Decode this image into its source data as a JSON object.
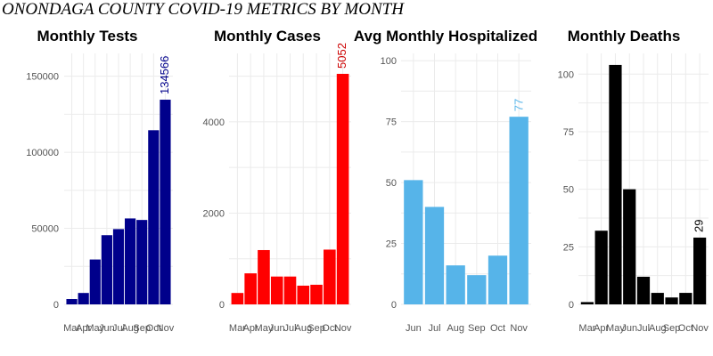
{
  "title": "ONONDAGA COUNTY COVID-19 METRICS BY MONTH",
  "chart_data": [
    {
      "type": "bar",
      "title": "Monthly Tests",
      "categories": [
        "Mar",
        "Apr",
        "May",
        "Jun",
        "Jul",
        "Aug",
        "Sep",
        "Oct",
        "Nov"
      ],
      "values": [
        3500,
        7500,
        29500,
        45500,
        49500,
        56500,
        55500,
        114500,
        134566
      ],
      "ylim": [
        0,
        165000
      ],
      "yticks": [
        0,
        50000,
        100000,
        150000
      ],
      "color": "#00008b",
      "data_label": {
        "category": "Nov",
        "text": "134566",
        "color": "#00008b"
      },
      "grid": true
    },
    {
      "type": "bar",
      "title": "Monthly Cases",
      "categories": [
        "Mar",
        "Apr",
        "May",
        "Jun",
        "Jul",
        "Aug",
        "Sep",
        "Oct",
        "Nov"
      ],
      "values": [
        250,
        680,
        1190,
        610,
        610,
        410,
        430,
        1200,
        5052
      ],
      "ylim": [
        0,
        5500
      ],
      "yticks": [
        0,
        2000,
        4000
      ],
      "color": "#ff0000",
      "data_label": {
        "category": "Nov",
        "text": "5052",
        "color": "#cc0000"
      },
      "grid": true
    },
    {
      "type": "bar",
      "title": "Avg Monthly Hospitalized",
      "categories": [
        "Jun",
        "Jul",
        "Aug",
        "Sep",
        "Oct",
        "Nov"
      ],
      "values": [
        51,
        40,
        16,
        12,
        20,
        77
      ],
      "ylim": [
        0,
        103
      ],
      "yticks": [
        0,
        25,
        50,
        75,
        100
      ],
      "color": "#56b4e9",
      "data_label": {
        "category": "Nov",
        "text": "77",
        "color": "#56b4e9"
      },
      "grid": true
    },
    {
      "type": "bar",
      "title": "Monthly Deaths",
      "categories": [
        "Mar",
        "Apr",
        "May",
        "Jun",
        "Jul",
        "Aug",
        "Sep",
        "Oct",
        "Nov"
      ],
      "values": [
        1,
        32,
        104,
        50,
        12,
        5,
        3,
        5,
        29
      ],
      "ylim": [
        0,
        109
      ],
      "yticks": [
        0,
        25,
        50,
        75,
        100
      ],
      "color": "#000000",
      "data_label": {
        "category": "Nov",
        "text": "29",
        "color": "#000000"
      },
      "grid": true
    }
  ]
}
